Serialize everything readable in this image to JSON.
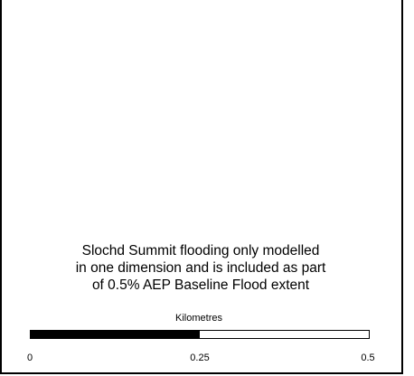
{
  "note": {
    "lines": [
      "Slochd Summit flooding only modelled",
      "in one dimension and is included as part",
      "of 0.5% AEP Baseline Flood extent"
    ]
  },
  "scale_bar": {
    "title": "Kilometres",
    "labels": [
      "0",
      "0.25",
      "0.5"
    ],
    "max_km": 0.5,
    "segments": [
      {
        "from_km": 0,
        "to_km": 0.25,
        "color": "#000000"
      },
      {
        "from_km": 0.25,
        "to_km": 0.5,
        "color": "#ffffff"
      }
    ]
  }
}
